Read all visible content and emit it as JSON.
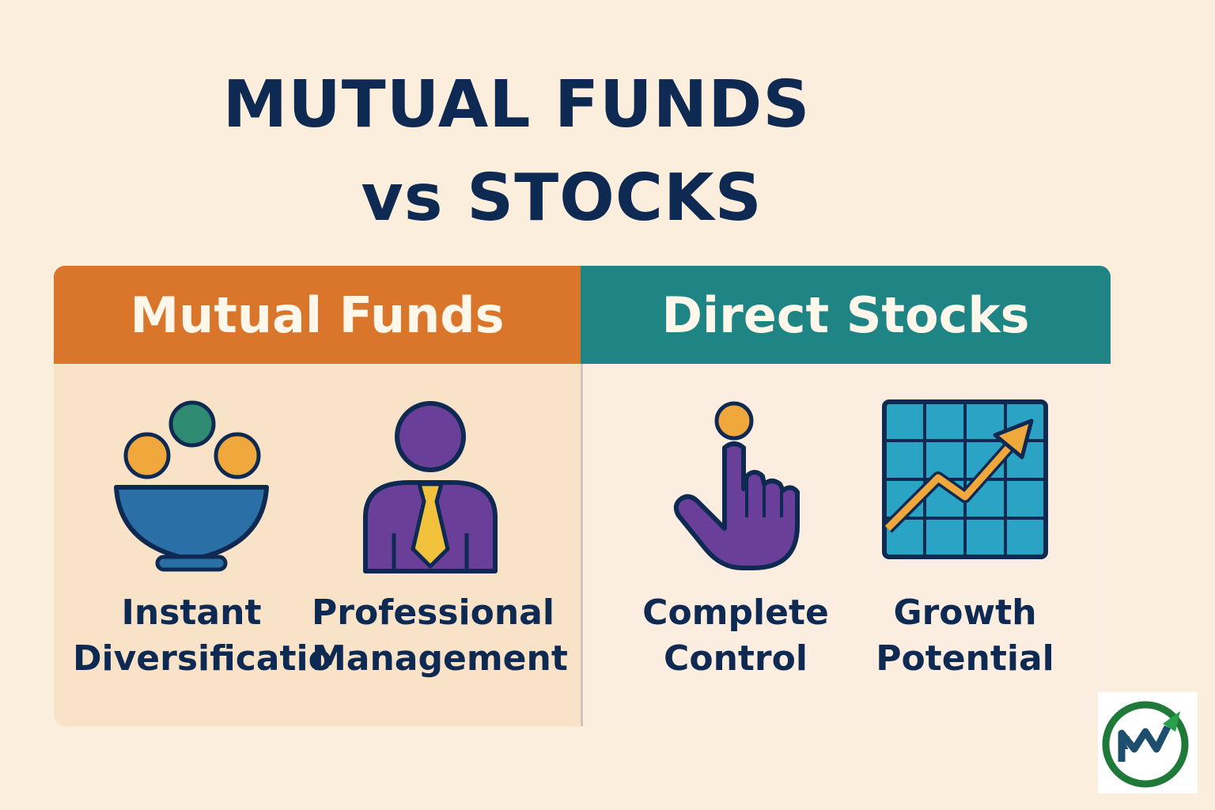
{
  "title": {
    "line1": "MUTUAL FUNDS",
    "line2": "vs STOCKS"
  },
  "left": {
    "header": "Mutual Funds",
    "items": [
      {
        "icon": "bowl-coins-icon",
        "label": "Instant\nDiversificatio"
      },
      {
        "icon": "professional-person-icon",
        "label": "Professional\nManagement"
      }
    ]
  },
  "right": {
    "header": "Direct Stocks",
    "items": [
      {
        "icon": "pointing-hand-icon",
        "label": "Complete\nControl"
      },
      {
        "icon": "growth-chart-icon",
        "label": "Growth\nPotential"
      }
    ]
  },
  "colors": {
    "background": "#fbeedd",
    "title": "#0f2a52",
    "mutual_header": "#d9762c",
    "stocks_header": "#1f8484",
    "purple": "#6a3f99",
    "blue": "#2a6fa5",
    "coin": "#f0a73c"
  },
  "logo": {
    "icon": "brand-logo-icon",
    "text": "₹"
  }
}
